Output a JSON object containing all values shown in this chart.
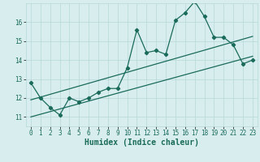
{
  "xlabel": "Humidex (Indice chaleur)",
  "x_values": [
    0,
    1,
    2,
    3,
    4,
    5,
    6,
    7,
    8,
    9,
    10,
    11,
    12,
    13,
    14,
    15,
    16,
    17,
    18,
    19,
    20,
    21,
    22,
    23
  ],
  "line1": [
    12.8,
    12.0,
    11.5,
    11.1,
    12.0,
    11.8,
    12.0,
    12.3,
    12.5,
    12.5,
    13.6,
    15.6,
    14.4,
    14.5,
    14.3,
    16.1,
    16.5,
    17.1,
    16.3,
    15.2,
    15.2,
    14.8,
    13.8,
    14.0
  ],
  "line2_start_x": 0,
  "line2_start_y": 11.0,
  "line2_end_x": 23,
  "line2_end_y": 14.2,
  "line3_start_x": 0,
  "line3_start_y": 11.9,
  "line3_end_x": 23,
  "line3_end_y": 15.25,
  "ylim": [
    10.5,
    17.0
  ],
  "xlim": [
    -0.5,
    23.5
  ],
  "yticks": [
    11,
    12,
    13,
    14,
    15,
    16
  ],
  "xticks": [
    0,
    1,
    2,
    3,
    4,
    5,
    6,
    7,
    8,
    9,
    10,
    11,
    12,
    13,
    14,
    15,
    16,
    17,
    18,
    19,
    20,
    21,
    22,
    23
  ],
  "line_color": "#1a6b5a",
  "bg_color": "#d8eeee",
  "grid_color": "#b8d8d8",
  "tick_fontsize": 5.5,
  "label_fontsize": 7.0
}
